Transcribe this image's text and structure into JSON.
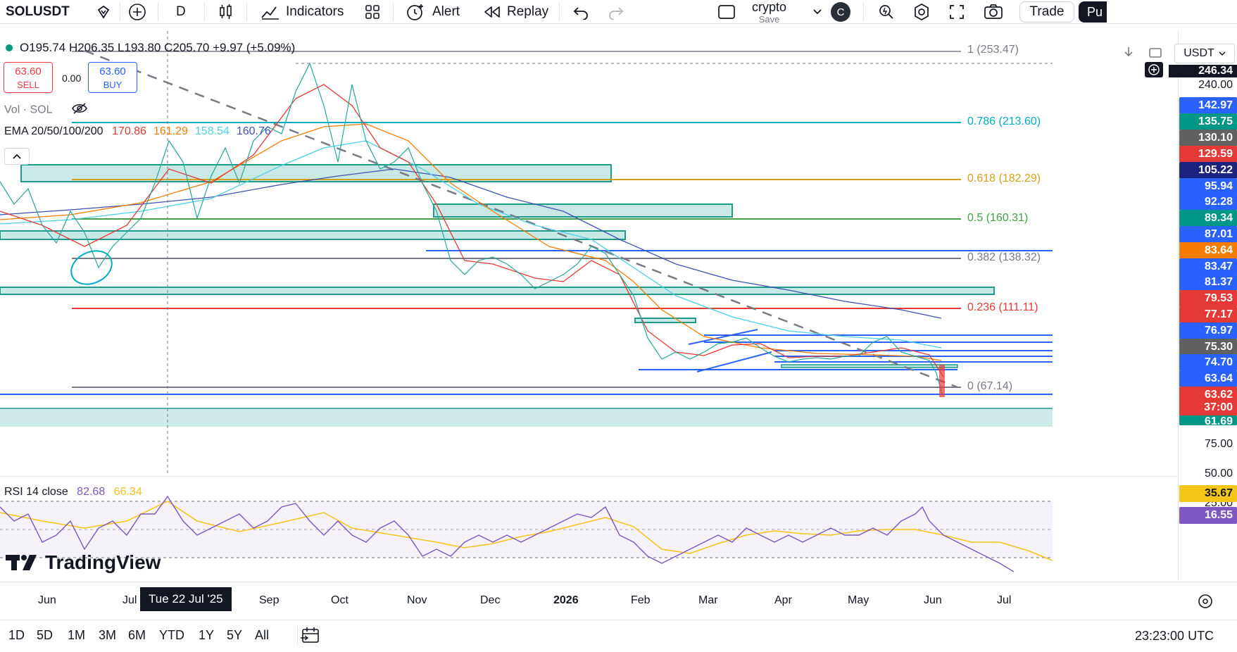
{
  "toolbar": {
    "symbol": "SOLUSDT",
    "interval": "D",
    "indicators_label": "Indicators",
    "alert_label": "Alert",
    "replay_label": "Replay",
    "layout_name": "crypto",
    "layout_save": "Save",
    "avatar_letter": "C",
    "trade_label": "Trade",
    "publish_label": "Pu"
  },
  "legend": {
    "ohlc": "O195.74  H206.35  L193.80  C205.70  +9.97 (+5.09%)",
    "sell_price": "63.60",
    "sell_label": "SELL",
    "spread": "0.00",
    "buy_price": "63.60",
    "buy_label": "BUY",
    "vol_label": "Vol · SOL",
    "ema_label": "EMA 20/50/100/200",
    "ema_values": [
      {
        "value": "170.86",
        "color": "#e53935"
      },
      {
        "value": "161.29",
        "color": "#f57c00"
      },
      {
        "value": "158.54",
        "color": "#4dd0e1"
      },
      {
        "value": "160.76",
        "color": "#3f51b5"
      }
    ]
  },
  "fib_levels": [
    {
      "label": "1 (253.47)",
      "color": "#787b86"
    },
    {
      "label": "0.786 (213.60)",
      "color": "#00acc1"
    },
    {
      "label": "0.618 (182.29)",
      "color": "#d4a017"
    },
    {
      "label": "0.5 (160.31)",
      "color": "#43a047"
    },
    {
      "label": "0.382 (138.32)",
      "color": "#787b86"
    },
    {
      "label": "0.236 (111.11)",
      "color": "#e53935"
    },
    {
      "label": "0 (67.14)",
      "color": "#787b86"
    }
  ],
  "price_scale": {
    "currency": "USDT",
    "top_values": [
      "246.34",
      "240.00"
    ],
    "labels": [
      {
        "value": "142.97",
        "color": "#2962ff"
      },
      {
        "value": "135.75",
        "color": "#009688"
      },
      {
        "value": "130.10",
        "color": "#616161"
      },
      {
        "value": "129.59",
        "color": "#e53935"
      },
      {
        "value": "105.22",
        "color": "#1a237e"
      },
      {
        "value": "95.94",
        "color": "#2962ff"
      },
      {
        "value": "92.28",
        "color": "#2962ff"
      },
      {
        "value": "89.34",
        "color": "#009688"
      },
      {
        "value": "87.01",
        "color": "#2962ff"
      },
      {
        "value": "83.64",
        "color": "#f57c00"
      },
      {
        "value": "83.47",
        "color": "#2962ff"
      },
      {
        "value": "81.37",
        "color": "#2962ff"
      },
      {
        "value": "79.53",
        "color": "#e53935"
      },
      {
        "value": "77.17",
        "color": "#e53935"
      },
      {
        "value": "76.97",
        "color": "#2962ff"
      },
      {
        "value": "75.30",
        "color": "#616161"
      },
      {
        "value": "74.70",
        "color": "#2962ff"
      },
      {
        "value": "63.64",
        "color": "#2962ff"
      },
      {
        "value": "63.62",
        "color": "#e53935"
      },
      {
        "value": "37:00",
        "color": "#e53935"
      },
      {
        "value": "61.69",
        "color": "#009688"
      }
    ]
  },
  "rsi": {
    "label": "RSI 14 close",
    "value1": "82.68",
    "value1_color": "#7e57c2",
    "value2": "66.34",
    "value2_color": "#f5c518",
    "scale": [
      "75.00",
      "50.00",
      "25.00"
    ],
    "current_labels": [
      {
        "value": "35.67",
        "color": "#f5c518"
      },
      {
        "value": "16.55",
        "color": "#7e57c2"
      }
    ]
  },
  "watermark": "TradingView",
  "time_axis": {
    "labels": [
      "Jun",
      "Jul",
      "Sep",
      "Oct",
      "Nov",
      "Dec",
      "2026",
      "Feb",
      "Mar",
      "Apr",
      "May",
      "Jun",
      "Jul"
    ],
    "crosshair_date": "Tue 22 Jul '25"
  },
  "bottom": {
    "ranges": [
      "1D",
      "5D",
      "1M",
      "3M",
      "6M",
      "YTD",
      "1Y",
      "5Y",
      "All"
    ],
    "clock": "23:23:00 UTC"
  }
}
